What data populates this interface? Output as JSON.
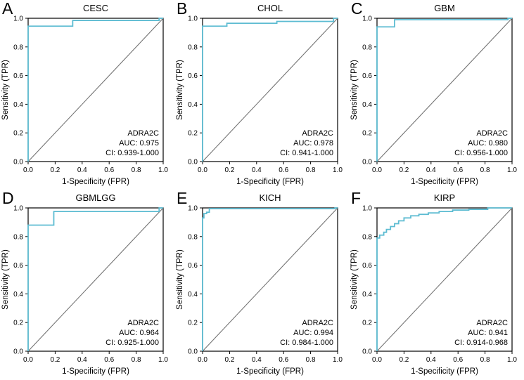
{
  "figure": {
    "xlabel": "1-Specificity (FPR)",
    "ylabel": "Sensitivity (TPR)",
    "ticks": [
      0,
      0.2,
      0.4,
      0.6,
      0.8,
      1
    ],
    "xlim": [
      0,
      1
    ],
    "ylim": [
      0,
      1
    ],
    "curve_color": "#5dbcd2",
    "diagonal_color": "#737373",
    "box_color": "#000000",
    "background_color": "#ffffff"
  },
  "chart_data": [
    {
      "type": "line",
      "panel": "A",
      "title": "CESC",
      "gene": "ADRA2C",
      "auc": 0.975,
      "ci": "0.939-1.000",
      "auc_label": "AUC: 0.975",
      "ci_label": "CI: 0.939-1.000",
      "xlabel": "1-Specificity (FPR)",
      "ylabel": "Sensitivity (TPR)",
      "roc_points": [
        [
          0,
          0
        ],
        [
          0,
          0.945
        ],
        [
          0.33,
          0.945
        ],
        [
          0.33,
          0.985
        ],
        [
          0.97,
          0.985
        ],
        [
          0.97,
          1
        ],
        [
          1,
          1
        ]
      ]
    },
    {
      "type": "line",
      "panel": "B",
      "title": "CHOL",
      "gene": "ADRA2C",
      "auc": 0.978,
      "ci": "0.941-1.000",
      "auc_label": "AUC: 0.978",
      "ci_label": "CI: 0.941-1.000",
      "xlabel": "1-Specificity (FPR)",
      "ylabel": "Sensitivity (TPR)",
      "roc_points": [
        [
          0,
          0
        ],
        [
          0,
          0.945
        ],
        [
          0.18,
          0.945
        ],
        [
          0.18,
          0.965
        ],
        [
          0.55,
          0.965
        ],
        [
          0.55,
          0.978
        ],
        [
          0.97,
          0.978
        ],
        [
          0.97,
          1
        ],
        [
          1,
          1
        ]
      ]
    },
    {
      "type": "line",
      "panel": "C",
      "title": "GBM",
      "gene": "ADRA2C",
      "auc": 0.98,
      "ci": "0.956-1.000",
      "auc_label": "AUC: 0.980",
      "ci_label": "CI: 0.956-1.000",
      "xlabel": "1-Specificity (FPR)",
      "ylabel": "Sensitivity (TPR)",
      "roc_points": [
        [
          0,
          0
        ],
        [
          0,
          0.94
        ],
        [
          0.13,
          0.94
        ],
        [
          0.13,
          0.99
        ],
        [
          0.97,
          0.99
        ],
        [
          0.97,
          1
        ],
        [
          1,
          1
        ]
      ]
    },
    {
      "type": "line",
      "panel": "D",
      "title": "GBMLGG",
      "gene": "ADRA2C",
      "auc": 0.964,
      "ci": "0.925-1.000",
      "auc_label": "AUC: 0.964",
      "ci_label": "CI: 0.925-1.000",
      "xlabel": "1-Specificity (FPR)",
      "ylabel": "Sensitivity (TPR)",
      "roc_points": [
        [
          0,
          0
        ],
        [
          0,
          0.88
        ],
        [
          0.19,
          0.88
        ],
        [
          0.19,
          0.975
        ],
        [
          0.97,
          0.975
        ],
        [
          0.97,
          1
        ],
        [
          1,
          1
        ]
      ]
    },
    {
      "type": "line",
      "panel": "E",
      "title": "KICH",
      "gene": "ADRA2C",
      "auc": 0.994,
      "ci": "0.984-1.000",
      "auc_label": "AUC: 0.994",
      "ci_label": "CI: 0.984-1.000",
      "xlabel": "1-Specificity (FPR)",
      "ylabel": "Sensitivity (TPR)",
      "roc_points": [
        [
          0,
          0
        ],
        [
          0,
          0.93
        ],
        [
          0.01,
          0.93
        ],
        [
          0.01,
          0.96
        ],
        [
          0.03,
          0.96
        ],
        [
          0.03,
          0.97
        ],
        [
          0.05,
          0.97
        ],
        [
          0.05,
          0.995
        ],
        [
          0.98,
          0.995
        ],
        [
          0.98,
          1
        ],
        [
          1,
          1
        ]
      ]
    },
    {
      "type": "line",
      "panel": "F",
      "title": "KIRP",
      "gene": "ADRA2C",
      "auc": 0.941,
      "ci": "0.914-0.968",
      "auc_label": "AUC: 0.941",
      "ci_label": "CI: 0.914-0.968",
      "xlabel": "1-Specificity (FPR)",
      "ylabel": "Sensitivity (TPR)",
      "roc_points": [
        [
          0,
          0
        ],
        [
          0,
          0.79
        ],
        [
          0.02,
          0.79
        ],
        [
          0.02,
          0.81
        ],
        [
          0.05,
          0.81
        ],
        [
          0.05,
          0.83
        ],
        [
          0.07,
          0.83
        ],
        [
          0.07,
          0.85
        ],
        [
          0.1,
          0.85
        ],
        [
          0.1,
          0.87
        ],
        [
          0.13,
          0.87
        ],
        [
          0.13,
          0.89
        ],
        [
          0.16,
          0.89
        ],
        [
          0.16,
          0.91
        ],
        [
          0.2,
          0.91
        ],
        [
          0.2,
          0.93
        ],
        [
          0.25,
          0.93
        ],
        [
          0.25,
          0.945
        ],
        [
          0.31,
          0.945
        ],
        [
          0.31,
          0.955
        ],
        [
          0.38,
          0.955
        ],
        [
          0.38,
          0.965
        ],
        [
          0.46,
          0.965
        ],
        [
          0.46,
          0.975
        ],
        [
          0.56,
          0.975
        ],
        [
          0.56,
          0.985
        ],
        [
          0.68,
          0.985
        ],
        [
          0.68,
          0.99
        ],
        [
          0.82,
          0.99
        ],
        [
          0.82,
          1
        ],
        [
          1,
          1
        ]
      ]
    }
  ]
}
